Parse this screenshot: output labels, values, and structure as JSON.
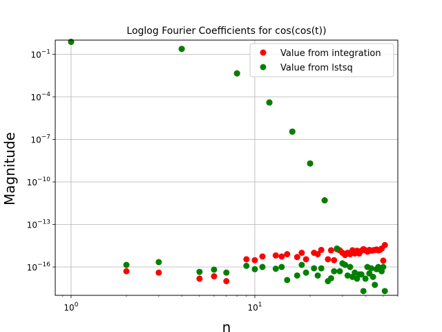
{
  "chart_data": {
    "type": "scatter",
    "title": "Loglog Fourier Coefficients for cos(cos(t))",
    "xlabel": "n",
    "ylabel": "Magnitude",
    "xscale": "log",
    "yscale": "log",
    "xlim": [
      0.82,
      60
    ],
    "ylim": [
      1e-18,
      1
    ],
    "grid": true,
    "legend_position": "top-right",
    "x_ticks": [
      {
        "value": 1,
        "label": "10",
        "exp": "0"
      },
      {
        "value": 10,
        "label": "10",
        "exp": "1"
      }
    ],
    "y_ticks": [
      {
        "value": 1e-16,
        "label": "10",
        "exp": "−16"
      },
      {
        "value": 1e-13,
        "label": "10",
        "exp": "−13"
      },
      {
        "value": 1e-10,
        "label": "10",
        "exp": "−10"
      },
      {
        "value": 1e-07,
        "label": "10",
        "exp": "−7"
      },
      {
        "value": 0.0001,
        "label": "10",
        "exp": "−4"
      },
      {
        "value": 0.1,
        "label": "10",
        "exp": "−1"
      }
    ],
    "series": [
      {
        "name": "Value from integration",
        "color": "#ff0000",
        "points": [
          [
            1,
            0.76
          ],
          [
            2,
            5e-17
          ],
          [
            3,
            4e-17
          ],
          [
            4,
            0.24
          ],
          [
            5,
            1.5e-17
          ],
          [
            6,
            2.2e-17
          ],
          [
            7,
            1e-17
          ],
          [
            8,
            0.0045
          ],
          [
            9,
            3.5e-16
          ],
          [
            10,
            3e-16
          ],
          [
            11,
            5.5e-16
          ],
          [
            12,
            4e-05
          ],
          [
            13,
            6.5e-16
          ],
          [
            14,
            5.5e-16
          ],
          [
            15,
            8e-16
          ],
          [
            16,
            3.5e-07
          ],
          [
            17,
            5e-16
          ],
          [
            18,
            1e-15
          ],
          [
            19,
            3.5e-16
          ],
          [
            20,
            2e-09
          ],
          [
            21,
            1e-15
          ],
          [
            22,
            8e-16
          ],
          [
            23,
            1.6e-15
          ],
          [
            24,
            5e-12
          ],
          [
            25,
            3.5e-16
          ],
          [
            26,
            1.5e-15
          ],
          [
            27,
            3e-16
          ],
          [
            28,
            1.8e-15
          ],
          [
            29,
            1.5e-15
          ],
          [
            30,
            1e-15
          ],
          [
            31,
            7e-16
          ],
          [
            32,
            1e-15
          ],
          [
            33,
            8e-16
          ],
          [
            34,
            1.5e-15
          ],
          [
            35,
            9e-16
          ],
          [
            36,
            1.4e-15
          ],
          [
            37,
            9e-16
          ],
          [
            38,
            1.4e-15
          ],
          [
            39,
            1.8e-15
          ],
          [
            40,
            1.5e-15
          ],
          [
            41,
            1.2e-15
          ],
          [
            42,
            1.6e-15
          ],
          [
            43,
            1.4e-15
          ],
          [
            44,
            1.5e-15
          ],
          [
            45,
            1.6e-15
          ],
          [
            46,
            1.7e-15
          ],
          [
            47,
            1.5e-15
          ],
          [
            48,
            1.6e-15
          ],
          [
            49,
            2e-15
          ],
          [
            50,
            2.8e-16
          ],
          [
            51,
            3.5e-15
          ]
        ]
      },
      {
        "name": "Value from lstsq",
        "color": "#008000",
        "points": [
          [
            1,
            0.76
          ],
          [
            2,
            1.4e-16
          ],
          [
            3,
            2.2e-16
          ],
          [
            4,
            0.24
          ],
          [
            5,
            4.5e-17
          ],
          [
            6,
            6.5e-17
          ],
          [
            7,
            4e-17
          ],
          [
            8,
            0.0045
          ],
          [
            9,
            1.2e-16
          ],
          [
            10,
            7e-17
          ],
          [
            11,
            1e-16
          ],
          [
            12,
            4e-05
          ],
          [
            13,
            7.5e-17
          ],
          [
            14,
            1e-16
          ],
          [
            15,
            1.2e-17
          ],
          [
            16,
            3.5e-07
          ],
          [
            17,
            2.5e-17
          ],
          [
            18,
            1.4e-16
          ],
          [
            19,
            4e-17
          ],
          [
            20,
            2e-09
          ],
          [
            21,
            8e-17
          ],
          [
            22,
            2.5e-17
          ],
          [
            23,
            8e-17
          ],
          [
            24,
            5e-12
          ],
          [
            25,
            1e-17
          ],
          [
            26,
            1.6e-17
          ],
          [
            27,
            5e-17
          ],
          [
            28,
            2e-15
          ],
          [
            29,
            5e-17
          ],
          [
            30,
            1.8e-16
          ],
          [
            31,
            1.4e-16
          ],
          [
            32,
            2.5e-17
          ],
          [
            33,
            1e-16
          ],
          [
            34,
            2e-17
          ],
          [
            35,
            4e-17
          ],
          [
            36,
            1.5e-17
          ],
          [
            37,
            3e-17
          ],
          [
            38,
            3e-17
          ],
          [
            39,
            2e-18
          ],
          [
            40,
            1.5e-17
          ],
          [
            41,
            1e-16
          ],
          [
            42,
            3.5e-17
          ],
          [
            43,
            8e-17
          ],
          [
            44,
            2e-17
          ],
          [
            45,
            5.5e-18
          ],
          [
            46,
            7e-17
          ],
          [
            47,
            1e-16
          ],
          [
            48,
            7e-17
          ],
          [
            49,
            5e-17
          ],
          [
            50,
            1e-16
          ],
          [
            51,
            2e-18
          ]
        ]
      }
    ]
  }
}
